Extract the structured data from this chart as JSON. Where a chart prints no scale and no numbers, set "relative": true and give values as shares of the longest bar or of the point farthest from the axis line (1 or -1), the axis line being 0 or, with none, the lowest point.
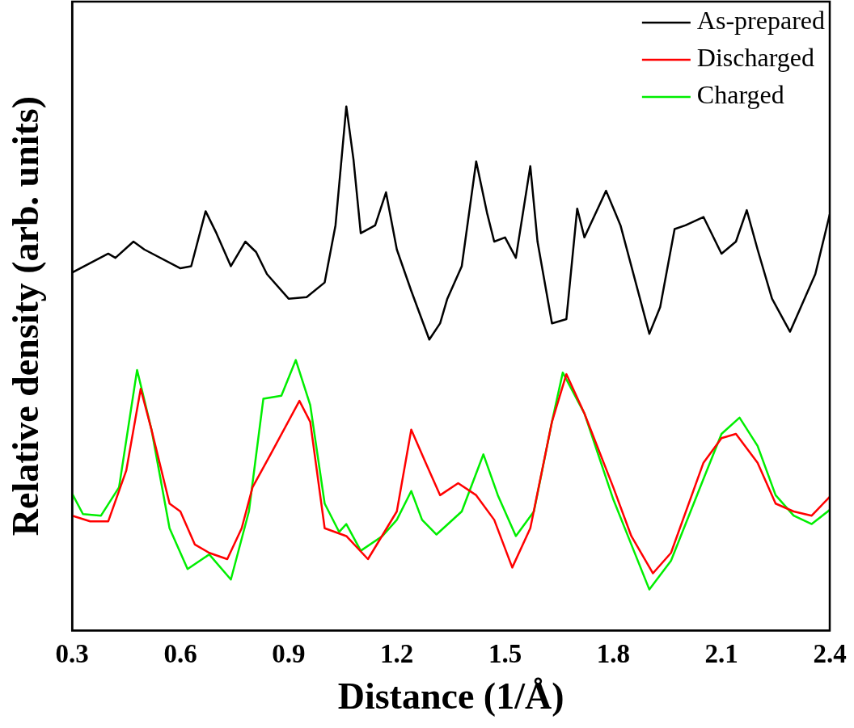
{
  "chart_data": {
    "type": "line",
    "xlabel": "Distance (1/Å)",
    "ylabel": "Relative density (arb. units)",
    "relative": true,
    "xlim": [
      0.3,
      2.4
    ],
    "xticks": [
      0.3,
      0.6,
      0.9,
      1.2,
      1.5,
      1.8,
      2.1,
      2.4
    ],
    "tick_labels": "x",
    "grid": false,
    "legend": "top right",
    "marker": "none",
    "line_style": "solid",
    "series": [
      {
        "name": "As-prepared",
        "color": "#000000",
        "x": [
          0.3,
          0.4,
          0.42,
          0.47,
          0.5,
          0.6,
          0.63,
          0.67,
          0.7,
          0.74,
          0.78,
          0.81,
          0.84,
          0.9,
          0.95,
          1.0,
          1.03,
          1.06,
          1.08,
          1.1,
          1.14,
          1.17,
          1.2,
          1.24,
          1.29,
          1.32,
          1.34,
          1.38,
          1.42,
          1.45,
          1.47,
          1.5,
          1.53,
          1.57,
          1.59,
          1.63,
          1.67,
          1.7,
          1.72,
          1.78,
          1.82,
          1.9,
          1.93,
          1.97,
          2.0,
          2.05,
          2.1,
          2.14,
          2.17,
          2.2,
          2.24,
          2.29,
          2.32,
          2.36,
          2.4
        ],
        "values": [
          0.683,
          0.719,
          0.711,
          0.742,
          0.727,
          0.691,
          0.695,
          0.8,
          0.758,
          0.695,
          0.742,
          0.722,
          0.68,
          0.633,
          0.636,
          0.664,
          0.773,
          1,
          0.898,
          0.758,
          0.773,
          0.836,
          0.727,
          0.648,
          0.555,
          0.586,
          0.633,
          0.695,
          0.895,
          0.797,
          0.742,
          0.75,
          0.711,
          0.886,
          0.742,
          0.586,
          0.594,
          0.805,
          0.75,
          0.839,
          0.773,
          0.566,
          0.617,
          0.766,
          0.773,
          0.789,
          0.719,
          0.742,
          0.802,
          0.727,
          0.633,
          0.57,
          0.617,
          0.68,
          0.794
        ]
      },
      {
        "name": "Discharged",
        "color": "#ff0000",
        "x": [
          0.3,
          0.35,
          0.4,
          0.45,
          0.49,
          0.52,
          0.57,
          0.6,
          0.64,
          0.68,
          0.73,
          0.77,
          0.8,
          0.85,
          0.93,
          0.96,
          1.0,
          1.06,
          1.12,
          1.2,
          1.24,
          1.28,
          1.32,
          1.37,
          1.42,
          1.47,
          1.52,
          1.57,
          1.63,
          1.67,
          1.72,
          1.8,
          1.85,
          1.91,
          1.96,
          2.05,
          2.1,
          2.14,
          2.2,
          2.25,
          2.3,
          2.35,
          2.4
        ],
        "values": [
          0.219,
          0.208,
          0.208,
          0.305,
          0.461,
          0.383,
          0.242,
          0.227,
          0.164,
          0.148,
          0.136,
          0.195,
          0.273,
          0.336,
          0.438,
          0.398,
          0.195,
          0.18,
          0.136,
          0.227,
          0.383,
          0.32,
          0.258,
          0.281,
          0.258,
          0.211,
          0.12,
          0.195,
          0.398,
          0.489,
          0.414,
          0.273,
          0.18,
          0.109,
          0.148,
          0.32,
          0.367,
          0.375,
          0.32,
          0.242,
          0.227,
          0.219,
          0.255
        ]
      },
      {
        "name": "Charged",
        "color": "#00ee00",
        "x": [
          0.3,
          0.33,
          0.38,
          0.43,
          0.48,
          0.52,
          0.57,
          0.62,
          0.68,
          0.74,
          0.79,
          0.83,
          0.88,
          0.92,
          0.96,
          1.0,
          1.04,
          1.06,
          1.1,
          1.16,
          1.2,
          1.24,
          1.27,
          1.31,
          1.38,
          1.44,
          1.48,
          1.53,
          1.58,
          1.63,
          1.66,
          1.72,
          1.8,
          1.85,
          1.9,
          1.96,
          2.05,
          2.1,
          2.15,
          2.2,
          2.25,
          2.3,
          2.35,
          2.4
        ],
        "values": [
          0.261,
          0.222,
          0.219,
          0.273,
          0.497,
          0.383,
          0.195,
          0.117,
          0.145,
          0.097,
          0.227,
          0.442,
          0.448,
          0.516,
          0.43,
          0.242,
          0.188,
          0.203,
          0.152,
          0.18,
          0.211,
          0.266,
          0.211,
          0.183,
          0.227,
          0.336,
          0.258,
          0.18,
          0.227,
          0.398,
          0.492,
          0.414,
          0.25,
          0.164,
          0.078,
          0.133,
          0.289,
          0.375,
          0.406,
          0.352,
          0.258,
          0.219,
          0.203,
          0.23
        ]
      }
    ]
  }
}
